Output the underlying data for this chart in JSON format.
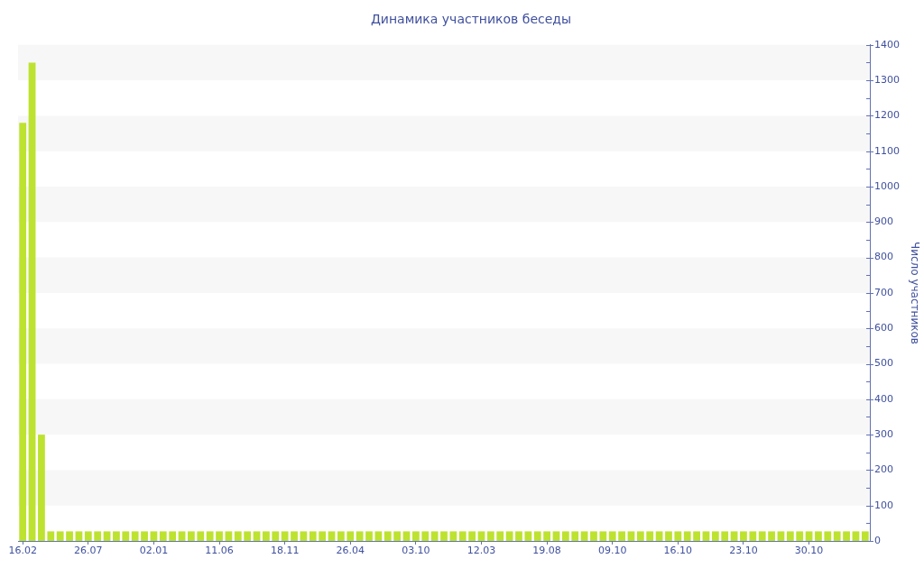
{
  "chart_data": {
    "type": "bar",
    "title": "Динамика участников беседы",
    "ylabel": "Число участников",
    "categories": [
      "16.02",
      null,
      null,
      null,
      null,
      null,
      null,
      "26.07",
      null,
      null,
      null,
      null,
      null,
      null,
      "02.01",
      null,
      null,
      null,
      null,
      null,
      null,
      "11.06",
      null,
      null,
      null,
      null,
      null,
      null,
      "18.11",
      null,
      null,
      null,
      null,
      null,
      null,
      "26.04",
      null,
      null,
      null,
      null,
      null,
      null,
      "03.10",
      null,
      null,
      null,
      null,
      null,
      null,
      "12.03",
      null,
      null,
      null,
      null,
      null,
      null,
      "19.08",
      null,
      null,
      null,
      null,
      null,
      null,
      "09.10",
      null,
      null,
      null,
      null,
      null,
      null,
      "16.10",
      null,
      null,
      null,
      null,
      null,
      null,
      "23.10",
      null,
      null,
      null,
      null,
      null,
      null,
      "30.10",
      null,
      null,
      null,
      null,
      null,
      null
    ],
    "values": [
      1180,
      1350,
      300,
      27,
      27,
      27,
      27,
      27,
      27,
      27,
      27,
      27,
      27,
      27,
      27,
      27,
      27,
      27,
      27,
      27,
      27,
      27,
      27,
      27,
      27,
      27,
      27,
      27,
      27,
      27,
      27,
      27,
      27,
      27,
      27,
      27,
      27,
      27,
      27,
      27,
      27,
      27,
      27,
      27,
      27,
      27,
      27,
      27,
      27,
      27,
      27,
      27,
      27,
      27,
      27,
      27,
      27,
      27,
      27,
      27,
      27,
      27,
      27,
      27,
      27,
      27,
      27,
      27,
      27,
      27,
      27,
      27,
      27,
      27,
      27,
      27,
      27,
      27,
      27,
      27,
      27,
      27,
      27,
      27,
      27,
      27,
      27,
      27,
      27,
      27,
      27
    ],
    "color": "#bde22f",
    "ylim": [
      0,
      1400
    ],
    "yticks": [
      0,
      {
        "value": 50,
        "label": null
      },
      100,
      {
        "value": 150,
        "label": null
      },
      200,
      {
        "value": 250,
        "label": null
      },
      300,
      {
        "value": 350,
        "label": null
      },
      400,
      {
        "value": 450,
        "label": null
      },
      500,
      {
        "value": 550,
        "label": null
      },
      600,
      {
        "value": 650,
        "label": null
      },
      700,
      {
        "value": 750,
        "label": null
      },
      800,
      {
        "value": 850,
        "label": null
      },
      900,
      {
        "value": 950,
        "label": null
      },
      1000,
      {
        "value": 1050,
        "label": null
      },
      1100,
      {
        "value": 1150,
        "label": null
      },
      1200,
      {
        "value": 1250,
        "label": null
      },
      1300,
      {
        "value": 1350,
        "label": null
      },
      1400
    ],
    "bands": [
      {
        "axis": "y",
        "from": 100,
        "to": 200,
        "color": "#f7f7f7"
      },
      {
        "axis": "y",
        "from": 300,
        "to": 400,
        "color": "#f7f7f7"
      },
      {
        "axis": "y",
        "from": 500,
        "to": 600,
        "color": "#f7f7f7"
      },
      {
        "axis": "y",
        "from": 700,
        "to": 800,
        "color": "#f7f7f7"
      },
      {
        "axis": "y",
        "from": 900,
        "to": 1000,
        "color": "#f7f7f7"
      },
      {
        "axis": "y",
        "from": 1100,
        "to": 1200,
        "color": "#f7f7f7"
      },
      {
        "axis": "y",
        "from": 1300,
        "to": 1400,
        "color": "#f7f7f7"
      }
    ]
  }
}
